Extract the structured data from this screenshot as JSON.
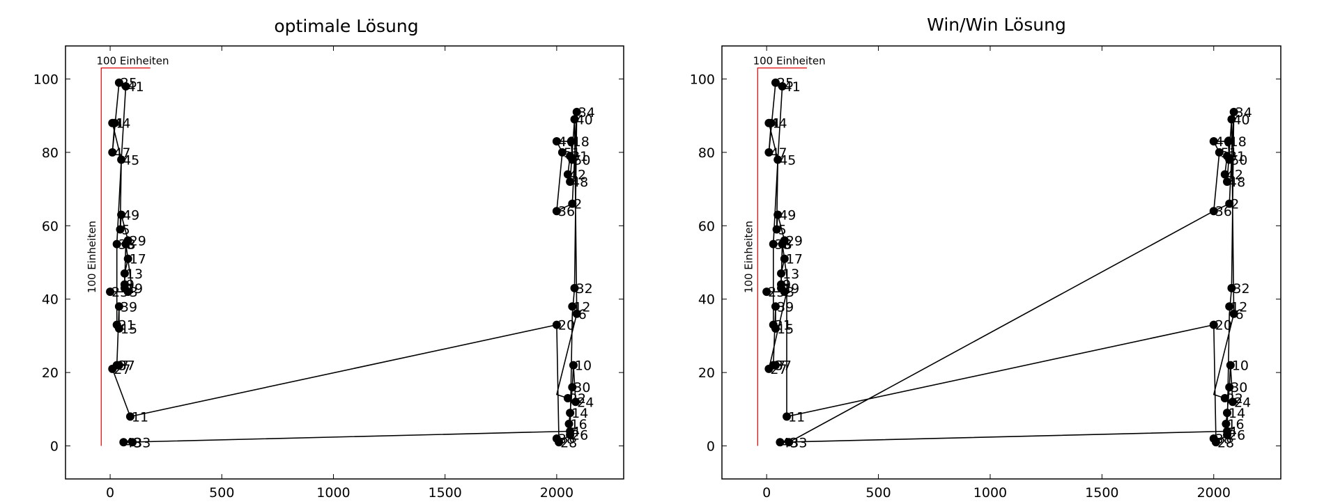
{
  "chart_data": [
    {
      "type": "line",
      "title": "optimale Lösung",
      "xlabel": "",
      "ylabel": "",
      "xlim": [
        -200,
        2300
      ],
      "ylim": [
        -9,
        109
      ],
      "xticks": [
        0,
        500,
        1000,
        1500,
        2000
      ],
      "yticks": [
        0,
        20,
        40,
        60,
        80,
        100
      ],
      "grid": false,
      "scale_bar": {
        "x_label": "100 Einheiten",
        "y_label": "100 Einheiten",
        "color": "#e00000"
      },
      "points": [
        {
          "label": "1",
          "x": 20,
          "y": 88
        },
        {
          "label": "2",
          "x": 2070,
          "y": 66
        },
        {
          "label": "3",
          "x": 80,
          "y": 42
        },
        {
          "label": "4",
          "x": 2060,
          "y": 4
        },
        {
          "label": "5",
          "x": 45,
          "y": 59
        },
        {
          "label": "6",
          "x": 2090,
          "y": 36
        },
        {
          "label": "7",
          "x": 40,
          "y": 22
        },
        {
          "label": "8",
          "x": 70,
          "y": 55
        },
        {
          "label": "9",
          "x": 65,
          "y": 44
        },
        {
          "label": "10",
          "x": 2075,
          "y": 22
        },
        {
          "label": "11",
          "x": 90,
          "y": 8
        },
        {
          "label": "12",
          "x": 2070,
          "y": 38
        },
        {
          "label": "13",
          "x": 65,
          "y": 47
        },
        {
          "label": "14",
          "x": 2060,
          "y": 9
        },
        {
          "label": "15",
          "x": 40,
          "y": 32
        },
        {
          "label": "16",
          "x": 2055,
          "y": 6
        },
        {
          "label": "17",
          "x": 80,
          "y": 51
        },
        {
          "label": "18",
          "x": 2065,
          "y": 83
        },
        {
          "label": "19",
          "x": 65,
          "y": 43
        },
        {
          "label": "20",
          "x": 2000,
          "y": 33
        },
        {
          "label": "21",
          "x": 30,
          "y": 33
        },
        {
          "label": "22",
          "x": 2050,
          "y": 13
        },
        {
          "label": "23",
          "x": 0,
          "y": 42
        },
        {
          "label": "24",
          "x": 2085,
          "y": 12
        },
        {
          "label": "25",
          "x": 40,
          "y": 99
        },
        {
          "label": "26",
          "x": 2060,
          "y": 3
        },
        {
          "label": "27",
          "x": 10,
          "y": 21
        },
        {
          "label": "28",
          "x": 2010,
          "y": 1
        },
        {
          "label": "29",
          "x": 80,
          "y": 56
        },
        {
          "label": "30",
          "x": 2070,
          "y": 16
        },
        {
          "label": "31",
          "x": 2060,
          "y": 79
        },
        {
          "label": "32",
          "x": 2080,
          "y": 43
        },
        {
          "label": "33",
          "x": 100,
          "y": 1
        },
        {
          "label": "34",
          "x": 2090,
          "y": 91
        },
        {
          "label": "35",
          "x": 30,
          "y": 55
        },
        {
          "label": "36",
          "x": 2000,
          "y": 64
        },
        {
          "label": "37",
          "x": 30,
          "y": 22
        },
        {
          "label": "38",
          "x": 2000,
          "y": 2
        },
        {
          "label": "39",
          "x": 40,
          "y": 38
        },
        {
          "label": "40",
          "x": 2080,
          "y": 89
        },
        {
          "label": "41",
          "x": 70,
          "y": 98
        },
        {
          "label": "42",
          "x": 2050,
          "y": 74
        },
        {
          "label": "43",
          "x": 60,
          "y": 1
        },
        {
          "label": "44",
          "x": 10,
          "y": 88
        },
        {
          "label": "45",
          "x": 50,
          "y": 78
        },
        {
          "label": "46",
          "x": 2000,
          "y": 83
        },
        {
          "label": "47",
          "x": 10,
          "y": 80
        },
        {
          "label": "48",
          "x": 2060,
          "y": 72
        },
        {
          "label": "49",
          "x": 50,
          "y": 63
        },
        {
          "label": "50",
          "x": 2070,
          "y": 78
        },
        {
          "label": "51",
          "x": 2025,
          "y": 80
        }
      ],
      "tour_x": [
        0,
        100,
        70,
        65,
        65,
        80,
        70,
        80,
        50,
        45,
        50,
        10,
        20,
        10,
        40,
        70,
        50,
        30,
        30,
        40,
        40,
        30,
        10,
        90,
        2000,
        2010,
        2060,
        2070,
        2080,
        2090,
        2070,
        2000,
        2025,
        2000,
        2065,
        2070,
        2060,
        2050,
        2060,
        2080,
        2090,
        2000,
        2050,
        2085,
        2075,
        2070,
        2060,
        2055,
        2060,
        60,
        100
      ],
      "tour_y": [
        42,
        42,
        55,
        44,
        47,
        51,
        55,
        56,
        63,
        59,
        78,
        88,
        88,
        80,
        99,
        98,
        78,
        55,
        33,
        32,
        38,
        22,
        21,
        8,
        33,
        1,
        3,
        36,
        43,
        91,
        66,
        64,
        80,
        83,
        83,
        78,
        79,
        74,
        72,
        89,
        36,
        14,
        13,
        12,
        22,
        16,
        9,
        6,
        4,
        1,
        1
      ]
    },
    {
      "type": "line",
      "title": "Win/Win Lösung",
      "xlabel": "",
      "ylabel": "",
      "xlim": [
        -200,
        2300
      ],
      "ylim": [
        -9,
        109
      ],
      "xticks": [
        0,
        500,
        1000,
        1500,
        2000
      ],
      "yticks": [
        0,
        20,
        40,
        60,
        80,
        100
      ],
      "grid": false,
      "scale_bar": {
        "x_label": "100 Einheiten",
        "y_label": "100 Einheiten",
        "color": "#e00000"
      },
      "points": [
        {
          "label": "1",
          "x": 20,
          "y": 88
        },
        {
          "label": "2",
          "x": 2070,
          "y": 66
        },
        {
          "label": "3",
          "x": 80,
          "y": 42
        },
        {
          "label": "4",
          "x": 2060,
          "y": 4
        },
        {
          "label": "5",
          "x": 45,
          "y": 59
        },
        {
          "label": "6",
          "x": 2090,
          "y": 36
        },
        {
          "label": "7",
          "x": 40,
          "y": 22
        },
        {
          "label": "8",
          "x": 70,
          "y": 55
        },
        {
          "label": "9",
          "x": 65,
          "y": 44
        },
        {
          "label": "10",
          "x": 2075,
          "y": 22
        },
        {
          "label": "11",
          "x": 90,
          "y": 8
        },
        {
          "label": "12",
          "x": 2070,
          "y": 38
        },
        {
          "label": "13",
          "x": 65,
          "y": 47
        },
        {
          "label": "14",
          "x": 2060,
          "y": 9
        },
        {
          "label": "15",
          "x": 40,
          "y": 32
        },
        {
          "label": "16",
          "x": 2055,
          "y": 6
        },
        {
          "label": "17",
          "x": 80,
          "y": 51
        },
        {
          "label": "18",
          "x": 2065,
          "y": 83
        },
        {
          "label": "19",
          "x": 65,
          "y": 43
        },
        {
          "label": "20",
          "x": 2000,
          "y": 33
        },
        {
          "label": "21",
          "x": 30,
          "y": 33
        },
        {
          "label": "22",
          "x": 2050,
          "y": 13
        },
        {
          "label": "23",
          "x": 0,
          "y": 42
        },
        {
          "label": "24",
          "x": 2085,
          "y": 12
        },
        {
          "label": "25",
          "x": 40,
          "y": 99
        },
        {
          "label": "26",
          "x": 2060,
          "y": 3
        },
        {
          "label": "27",
          "x": 10,
          "y": 21
        },
        {
          "label": "28",
          "x": 2010,
          "y": 1
        },
        {
          "label": "29",
          "x": 80,
          "y": 56
        },
        {
          "label": "30",
          "x": 2070,
          "y": 16
        },
        {
          "label": "31",
          "x": 2060,
          "y": 79
        },
        {
          "label": "32",
          "x": 2080,
          "y": 43
        },
        {
          "label": "33",
          "x": 100,
          "y": 1
        },
        {
          "label": "34",
          "x": 2090,
          "y": 91
        },
        {
          "label": "35",
          "x": 30,
          "y": 55
        },
        {
          "label": "36",
          "x": 2000,
          "y": 64
        },
        {
          "label": "37",
          "x": 30,
          "y": 22
        },
        {
          "label": "38",
          "x": 2000,
          "y": 2
        },
        {
          "label": "39",
          "x": 40,
          "y": 38
        },
        {
          "label": "40",
          "x": 2080,
          "y": 89
        },
        {
          "label": "41",
          "x": 70,
          "y": 98
        },
        {
          "label": "42",
          "x": 2050,
          "y": 74
        },
        {
          "label": "43",
          "x": 60,
          "y": 1
        },
        {
          "label": "44",
          "x": 10,
          "y": 88
        },
        {
          "label": "45",
          "x": 50,
          "y": 78
        },
        {
          "label": "46",
          "x": 2000,
          "y": 83
        },
        {
          "label": "47",
          "x": 10,
          "y": 80
        },
        {
          "label": "48",
          "x": 2060,
          "y": 72
        },
        {
          "label": "49",
          "x": 50,
          "y": 63
        },
        {
          "label": "50",
          "x": 2070,
          "y": 78
        },
        {
          "label": "51",
          "x": 2025,
          "y": 80
        }
      ],
      "tour_x": [
        0,
        100,
        70,
        65,
        65,
        80,
        70,
        80,
        50,
        45,
        50,
        10,
        20,
        10,
        40,
        70,
        50,
        30,
        30,
        40,
        40,
        30,
        10,
        90,
        90,
        2000,
        2010,
        2060,
        2070,
        2080,
        2090,
        2070,
        2000,
        2025,
        2000,
        2065,
        2070,
        2060,
        2050,
        2060,
        2080,
        2090,
        2000,
        2050,
        2085,
        2075,
        2070,
        2060,
        2055,
        2060,
        60,
        100,
        2000
      ],
      "tour_y": [
        42,
        42,
        55,
        44,
        47,
        51,
        55,
        56,
        63,
        59,
        78,
        88,
        88,
        80,
        99,
        98,
        78,
        55,
        33,
        32,
        38,
        22,
        21,
        42,
        8,
        33,
        1,
        3,
        36,
        43,
        91,
        66,
        64,
        80,
        83,
        83,
        78,
        79,
        74,
        72,
        89,
        36,
        14,
        13,
        12,
        22,
        16,
        9,
        6,
        4,
        1,
        1,
        64
      ]
    }
  ]
}
